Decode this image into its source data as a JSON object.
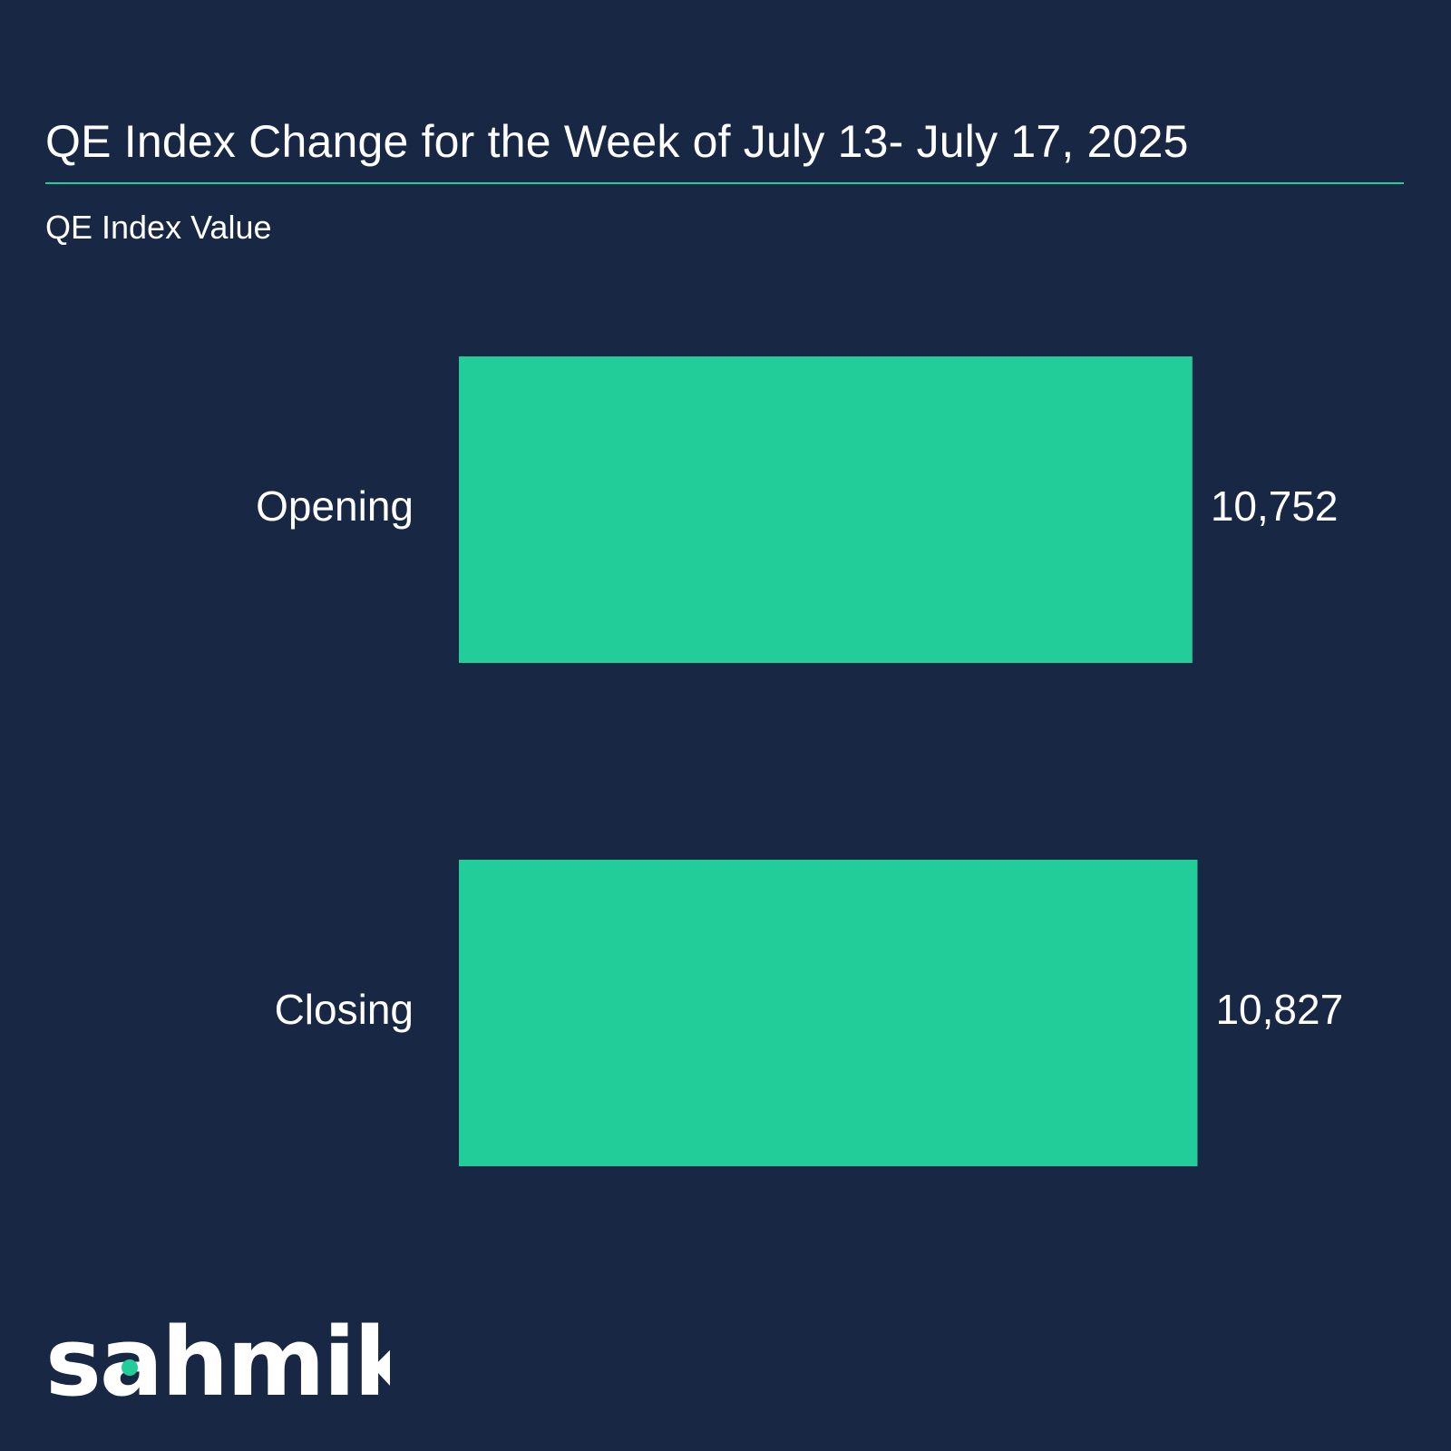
{
  "chart_data": {
    "type": "bar",
    "orientation": "horizontal",
    "title": "QE Index Change for the Week of  July 13- July 17, 2025",
    "subtitle": "QE Index Value",
    "categories": [
      "Opening",
      "Closing"
    ],
    "values": [
      10752,
      10827
    ],
    "value_labels": [
      "10,752",
      "10,827"
    ],
    "xlim": [
      0,
      11100
    ],
    "grid": false,
    "legend": "none"
  },
  "colors": {
    "background": "#182744",
    "bar": "#22cd99",
    "accent_rule": "#22cd99",
    "text": "#ffffff",
    "logo_text": "#ffffff",
    "logo_dot": "#22cd99"
  },
  "brand": {
    "logo": "sahmik"
  }
}
